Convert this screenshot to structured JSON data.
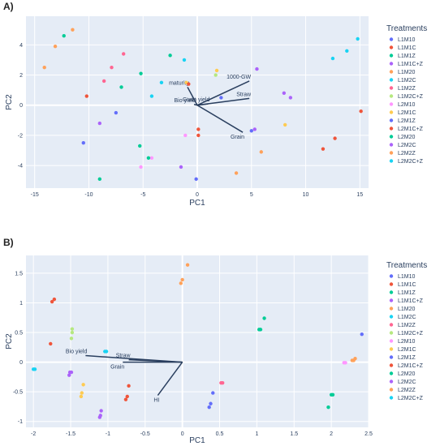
{
  "chart_data": [
    {
      "type": "scatter",
      "panel_label": "A)",
      "xlabel": "PC1",
      "ylabel": "PC2",
      "xlim": [
        -15.8,
        15.8
      ],
      "ylim": [
        -5.5,
        5.9
      ],
      "x_ticks": [
        -15,
        -10,
        -5,
        0,
        5,
        10,
        15
      ],
      "y_ticks": [
        -4,
        -2,
        0,
        2,
        4
      ],
      "legend_title": "Treatments",
      "series": [
        {
          "name": "L1M10",
          "color": "#636efa",
          "points": [
            [
              -10.5,
              -2.5
            ],
            [
              -0.1,
              -4.9
            ],
            [
              2.2,
              0.5
            ],
            [
              5,
              -1.7
            ]
          ]
        },
        {
          "name": "L1M1C",
          "color": "#ef553b",
          "points": [
            [
              0.1,
              -1.6
            ],
            [
              0.1,
              -2
            ],
            [
              11.6,
              -2.9
            ],
            [
              12.7,
              -2.2
            ],
            [
              15.1,
              -0.4
            ]
          ]
        },
        {
          "name": "L1M1Z",
          "color": "#00cc96",
          "points": [
            [
              -12.3,
              4.6
            ]
          ]
        },
        {
          "name": "L1M1C+Z",
          "color": "#ab63fa",
          "points": [
            [
              -9,
              -1.2
            ],
            [
              -1.5,
              -4.1
            ],
            [
              5.5,
              2.4
            ],
            [
              8,
              0.8
            ],
            [
              8.6,
              0.5
            ]
          ]
        },
        {
          "name": "L1M20",
          "color": "#ffa15a",
          "points": [
            [
              -14.1,
              2.5
            ],
            [
              -13.1,
              3.9
            ],
            [
              -11.5,
              5
            ]
          ]
        },
        {
          "name": "L1M2C",
          "color": "#19d3f3",
          "points": [
            [
              -4.2,
              0.6
            ],
            [
              -3.3,
              1.5
            ],
            [
              -1.2,
              3
            ]
          ]
        },
        {
          "name": "L1M2Z",
          "color": "#ff6692",
          "points": [
            [
              -8.6,
              1.6
            ],
            [
              -7.9,
              2.5
            ],
            [
              -6.8,
              3.4
            ]
          ]
        },
        {
          "name": "L1M2C+Z",
          "color": "#b6e880",
          "points": [
            [
              1.7,
              2
            ]
          ]
        },
        {
          "name": "L2M10",
          "color": "#ff97ff",
          "points": [
            [
              -5.2,
              -4.1
            ],
            [
              -4.2,
              -3.5
            ],
            [
              -1.1,
              -2
            ]
          ]
        },
        {
          "name": "L2M1C",
          "color": "#fecb52",
          "points": [
            [
              -1,
              1.5
            ],
            [
              1.8,
              2.3
            ],
            [
              8.1,
              -1.3
            ]
          ]
        },
        {
          "name": "L2M1Z",
          "color": "#636efa",
          "points": [
            [
              -7.5,
              -0.5
            ]
          ]
        },
        {
          "name": "L2M1C+Z",
          "color": "#ef553b",
          "points": [
            [
              -10.2,
              0.6
            ],
            [
              -0.8,
              1.4
            ]
          ]
        },
        {
          "name": "L2M20",
          "color": "#00cc96",
          "points": [
            [
              -9,
              -4.9
            ],
            [
              -7,
              1.2
            ],
            [
              -5.3,
              -2.7
            ],
            [
              -5.2,
              2.1
            ],
            [
              -4.5,
              -3.5
            ],
            [
              -2.5,
              3.3
            ]
          ]
        },
        {
          "name": "L2M2C",
          "color": "#ab63fa",
          "points": [
            [
              5.3,
              -1.6
            ]
          ]
        },
        {
          "name": "L2M2Z",
          "color": "#ffa15a",
          "points": [
            [
              3.6,
              -4.5
            ],
            [
              5.9,
              -3.1
            ]
          ]
        },
        {
          "name": "L2M2C+Z",
          "color": "#19d3f3",
          "points": [
            [
              12.5,
              3.1
            ],
            [
              13.8,
              3.6
            ],
            [
              14.8,
              4.4
            ]
          ]
        }
      ],
      "loadings": [
        {
          "label": "maturity",
          "x": -0.9,
          "y": 1.2
        },
        {
          "label": "1000-GW",
          "x": 4.8,
          "y": 1.6
        },
        {
          "label": "Straw",
          "x": 4.8,
          "y": 0.45
        },
        {
          "label": "Bio yield",
          "x": -0.3,
          "y": 0.05
        },
        {
          "label": "Grain yield",
          "x": 1.0,
          "y": 0.08
        },
        {
          "label": "Grain",
          "x": 4.2,
          "y": -1.8
        }
      ]
    },
    {
      "type": "scatter",
      "panel_label": "B)",
      "xlabel": "PC1",
      "ylabel": "PC2",
      "xlim": [
        -2.1,
        2.5
      ],
      "ylim": [
        -1.1,
        1.8
      ],
      "x_ticks": [
        -2,
        -1.5,
        -1,
        -0.5,
        0,
        0.5,
        1,
        1.5,
        2,
        2.5
      ],
      "y_ticks": [
        -1,
        -0.5,
        0,
        0.5,
        1,
        1.5
      ],
      "legend_title": "Treatments",
      "series": [
        {
          "name": "L1M10",
          "color": "#636efa",
          "points": [
            [
              2.41,
              0.47
            ]
          ]
        },
        {
          "name": "L1M1C",
          "color": "#ef553b",
          "points": [
            [
              -1.75,
              1.02
            ],
            [
              -1.72,
              1.06
            ],
            [
              -1.77,
              0.31
            ]
          ]
        },
        {
          "name": "L1M1Z",
          "color": "#00cc96",
          "points": [
            [
              1.03,
              0.55
            ],
            [
              1.05,
              0.55
            ],
            [
              1.1,
              0.74
            ]
          ]
        },
        {
          "name": "L1M1C+Z",
          "color": "#ab63fa",
          "points": [
            [
              -1.49,
              -0.17
            ],
            [
              -1.51,
              -0.17
            ],
            [
              -1.52,
              -0.22
            ]
          ]
        },
        {
          "name": "L1M20",
          "color": "#ffa15a",
          "points": [
            [
              -0.02,
              1.33
            ],
            [
              0,
              1.39
            ],
            [
              0.07,
              1.64
            ]
          ]
        },
        {
          "name": "L1M2C",
          "color": "#19d3f3",
          "points": [
            [
              -1.04,
              0.18
            ],
            [
              -1.02,
              0.18
            ]
          ]
        },
        {
          "name": "L1M2Z",
          "color": "#ff6692",
          "points": [
            [
              0.52,
              -0.35
            ],
            [
              0.54,
              -0.35
            ]
          ]
        },
        {
          "name": "L1M2C+Z",
          "color": "#b6e880",
          "points": [
            [
              -1.48,
              0.5
            ],
            [
              -1.48,
              0.56
            ],
            [
              -1.49,
              0.4
            ]
          ]
        },
        {
          "name": "L2M10",
          "color": "#ff97ff",
          "points": [
            [
              2.17,
              -0.01
            ],
            [
              2.19,
              -0.01
            ]
          ]
        },
        {
          "name": "L2M1C",
          "color": "#fecb52",
          "points": [
            [
              -1.33,
              -0.38
            ],
            [
              -1.35,
              -0.52
            ],
            [
              -1.36,
              -0.58
            ]
          ]
        },
        {
          "name": "L2M1Z",
          "color": "#636efa",
          "points": [
            [
              0.36,
              -0.76
            ],
            [
              0.38,
              -0.7
            ],
            [
              0.41,
              -0.52
            ]
          ]
        },
        {
          "name": "L2M1C+Z",
          "color": "#ef553b",
          "points": [
            [
              -0.72,
              -0.4
            ],
            [
              -0.74,
              -0.58
            ],
            [
              -0.76,
              -0.63
            ]
          ]
        },
        {
          "name": "L2M20",
          "color": "#00cc96",
          "points": [
            [
              1.96,
              -0.76
            ],
            [
              2.0,
              -0.55
            ],
            [
              2.02,
              -0.55
            ]
          ]
        },
        {
          "name": "L2M2C",
          "color": "#ab63fa",
          "points": [
            [
              -1.09,
              -0.82
            ],
            [
              -1.1,
              -0.9
            ],
            [
              -1.11,
              -0.93
            ]
          ]
        },
        {
          "name": "L2M2Z",
          "color": "#ffa15a",
          "points": [
            [
              2.28,
              0.03
            ],
            [
              2.3,
              0.03
            ],
            [
              2.32,
              0.06
            ]
          ]
        },
        {
          "name": "L2M2C+Z",
          "color": "#19d3f3",
          "points": [
            [
              -2.0,
              -0.12
            ],
            [
              -1.98,
              -0.12
            ]
          ]
        }
      ],
      "loadings": [
        {
          "label": "Bio yield",
          "x": -1.3,
          "y": 0.11
        },
        {
          "label": "Straw",
          "x": -0.72,
          "y": 0.04
        },
        {
          "label": "Grain",
          "x": -0.8,
          "y": 0.0
        },
        {
          "label": "HI",
          "x": -0.33,
          "y": -0.56
        }
      ]
    }
  ]
}
